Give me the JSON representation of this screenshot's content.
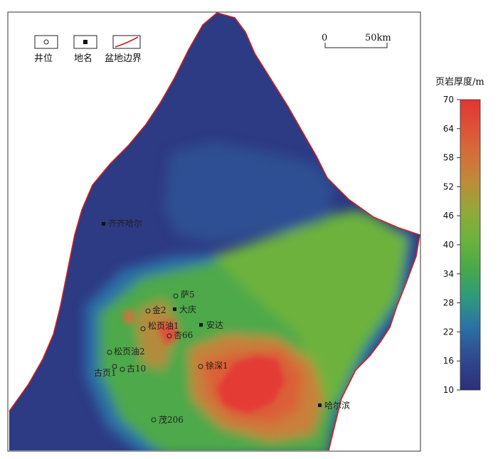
{
  "legend": {
    "well_label": "井位",
    "place_label": "地名",
    "boundary_label": "盆地边界"
  },
  "scale_bar": {
    "start": "0",
    "end": "50km"
  },
  "colorbar": {
    "title": "页岩厚度/m",
    "ticks": [
      "70",
      "64",
      "58",
      "52",
      "46",
      "40",
      "34",
      "28",
      "22",
      "16",
      "10"
    ],
    "min": 10,
    "max": 70
  },
  "wells": [
    {
      "name": "萨5"
    },
    {
      "name": "金2"
    },
    {
      "name": "松页油1"
    },
    {
      "name": "杏66"
    },
    {
      "name": "松页油2"
    },
    {
      "name": "古10"
    },
    {
      "name": "古页1"
    },
    {
      "name": "徐深1"
    },
    {
      "name": "茂206"
    }
  ],
  "places": [
    {
      "name": "齐齐哈尔"
    },
    {
      "name": "大庆"
    },
    {
      "name": "安达"
    },
    {
      "name": "哈尔滨"
    }
  ],
  "colors": {
    "low": "#2e3a86",
    "mid_low": "#2b6fa8",
    "mid": "#57b046",
    "mid_high": "#cf7a3a",
    "high": "#e23a36",
    "boundary": "#d02020"
  }
}
